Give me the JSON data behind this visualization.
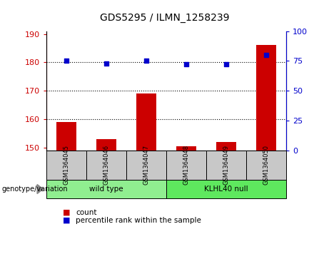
{
  "title": "GDS5295 / ILMN_1258239",
  "samples": [
    "GSM1364045",
    "GSM1364046",
    "GSM1364047",
    "GSM1364048",
    "GSM1364049",
    "GSM1364050"
  ],
  "counts": [
    159,
    153,
    169,
    150.5,
    152,
    186
  ],
  "percentile_ranks": [
    75,
    73,
    75,
    72,
    72,
    80
  ],
  "groups": [
    {
      "label": "wild type",
      "n": 3,
      "color": "#90EE90"
    },
    {
      "label": "KLHL40 null",
      "n": 3,
      "color": "#5EE85E"
    }
  ],
  "ylim_left": [
    149,
    191
  ],
  "ylim_right": [
    0,
    100
  ],
  "yticks_left": [
    150,
    160,
    170,
    180,
    190
  ],
  "yticks_right": [
    0,
    25,
    50,
    75,
    100
  ],
  "bar_color": "#CC0000",
  "dot_color": "#0000CC",
  "grid_lines": [
    160,
    170,
    180
  ],
  "bar_width": 0.5,
  "title_fontsize": 10,
  "genotype_label": "genotype/variation",
  "legend_count_label": "count",
  "legend_percentile_label": "percentile rank within the sample"
}
